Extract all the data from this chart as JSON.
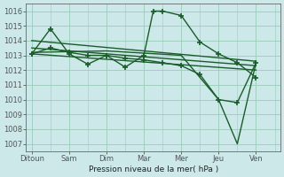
{
  "background_color": "#cce8e8",
  "grid_color": "#99ccbb",
  "line_color": "#1a5c2a",
  "x_labels": [
    "Ditoun",
    "Sam",
    "Dim",
    "Mar",
    "Mer",
    "Jeu",
    "Ven"
  ],
  "x_tick_pos": [
    0,
    2,
    4,
    6,
    8,
    10,
    12
  ],
  "xlabel": "Pression niveau de la mer( hPa )",
  "ylim": [
    1006.5,
    1016.5
  ],
  "yticks": [
    1007,
    1008,
    1009,
    1010,
    1011,
    1012,
    1013,
    1014,
    1015,
    1016
  ],
  "xlim": [
    -0.3,
    13.3
  ],
  "series": [
    {
      "x": [
        0,
        1,
        2,
        3,
        4,
        5,
        6,
        6.5,
        7,
        8,
        9,
        10,
        11,
        12
      ],
      "y": [
        1013.1,
        1014.8,
        1013.1,
        1012.4,
        1013.0,
        1012.2,
        1013.0,
        1016.0,
        1016.0,
        1015.7,
        1013.9,
        1013.1,
        1012.5,
        1011.5
      ],
      "marker": "+",
      "markersize": 5,
      "linewidth": 1.0,
      "markeredgewidth": 1.2
    },
    {
      "x": [
        0,
        12
      ],
      "y": [
        1014.0,
        1012.6
      ],
      "marker": null,
      "markersize": 0,
      "linewidth": 1.0
    },
    {
      "x": [
        0,
        12
      ],
      "y": [
        1013.5,
        1012.3
      ],
      "marker": null,
      "markersize": 0,
      "linewidth": 1.0
    },
    {
      "x": [
        0,
        1,
        2,
        3,
        4,
        5,
        6,
        7,
        8,
        9,
        10,
        11,
        12
      ],
      "y": [
        1013.1,
        1013.5,
        1013.2,
        1013.0,
        1013.0,
        1012.8,
        1012.7,
        1012.5,
        1012.3,
        1011.7,
        1010.0,
        1009.8,
        1012.5
      ],
      "marker": "+",
      "markersize": 5,
      "linewidth": 1.0,
      "markeredgewidth": 1.2
    },
    {
      "x": [
        0,
        4,
        8,
        10,
        11,
        12
      ],
      "y": [
        1013.2,
        1013.3,
        1013.0,
        1010.0,
        1007.0,
        1012.5
      ],
      "marker": null,
      "markersize": 0,
      "linewidth": 1.0
    },
    {
      "x": [
        0,
        12
      ],
      "y": [
        1013.1,
        1012.0
      ],
      "marker": null,
      "markersize": 0,
      "linewidth": 1.0
    }
  ]
}
